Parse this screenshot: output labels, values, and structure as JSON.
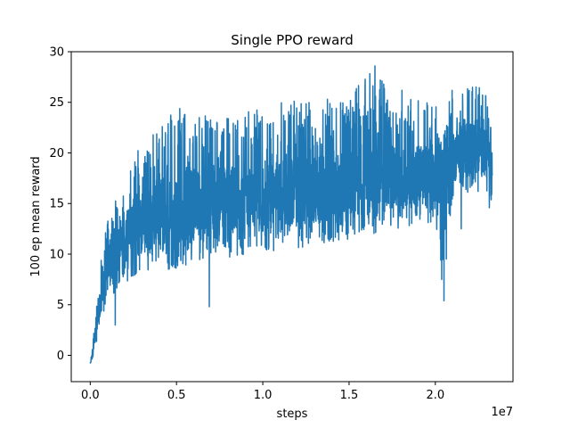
{
  "chart_data": {
    "type": "line",
    "title": "Single PPO reward",
    "xlabel": "steps",
    "ylabel": "100 ep mean reward",
    "x_scale_label": "1e7",
    "xlim": [
      -1.1,
      24.5
    ],
    "ylim": [
      -2.6,
      30
    ],
    "x_ticks": [
      0.0,
      0.5,
      1.0,
      1.5,
      2.0
    ],
    "x_tick_labels": [
      "0.0",
      "0.5",
      "1.0",
      "1.5",
      "2.0"
    ],
    "y_ticks": [
      0,
      5,
      10,
      15,
      20,
      25,
      30
    ],
    "y_tick_labels": [
      "0",
      "5",
      "10",
      "15",
      "20",
      "25",
      "30"
    ],
    "grid": false,
    "series": [
      {
        "color": "#1f77b4",
        "x_unit": "1e6 steps",
        "x_start": 0,
        "x_end": 23.3,
        "envelope": {
          "x": [
            0.0,
            0.3,
            0.5,
            1.0,
            1.5,
            2.0,
            2.5,
            3.0,
            4.0,
            5.0,
            6.0,
            7.0,
            8.0,
            9.0,
            10.0,
            11.0,
            12.0,
            13.0,
            14.0,
            15.0,
            16.0,
            16.5,
            17.0,
            18.0,
            19.0,
            20.0,
            20.5,
            21.0,
            22.0,
            23.0,
            23.3
          ],
          "mid": [
            -0.8,
            2.0,
            5.0,
            8.5,
            10.5,
            11.5,
            12.5,
            13.0,
            14.0,
            14.5,
            15.0,
            15.0,
            15.5,
            15.5,
            15.5,
            16.0,
            16.0,
            16.5,
            16.5,
            17.0,
            17.0,
            17.0,
            17.5,
            17.5,
            18.0,
            18.0,
            17.5,
            19.5,
            20.5,
            20.0,
            19.0
          ],
          "low": [
            -0.9,
            0.5,
            3.0,
            5.0,
            6.5,
            7.0,
            7.5,
            8.0,
            8.5,
            8.5,
            9.0,
            9.5,
            9.5,
            10.0,
            10.0,
            10.5,
            10.5,
            11.0,
            11.0,
            11.5,
            12.0,
            12.0,
            12.5,
            12.5,
            13.0,
            13.0,
            5.4,
            15.5,
            16.0,
            15.0,
            14.0
          ],
          "high": [
            -0.5,
            4.0,
            8.0,
            14.0,
            16.5,
            18.5,
            20.0,
            21.0,
            22.5,
            24.5,
            24.0,
            23.5,
            23.5,
            24.0,
            24.5,
            25.0,
            25.5,
            25.5,
            25.5,
            26.0,
            27.5,
            28.6,
            27.5,
            26.5,
            26.0,
            26.0,
            22.0,
            27.0,
            27.5,
            26.0,
            25.0
          ]
        },
        "annotated_points": [
          {
            "x": 0.0,
            "y": -0.8
          },
          {
            "x": 1.45,
            "y": 3.0
          },
          {
            "x": 6.9,
            "y": 4.8
          },
          {
            "x": 16.5,
            "y": 28.6
          },
          {
            "x": 20.5,
            "y": 5.4
          },
          {
            "x": 21.5,
            "y": 12.5
          }
        ]
      }
    ]
  }
}
